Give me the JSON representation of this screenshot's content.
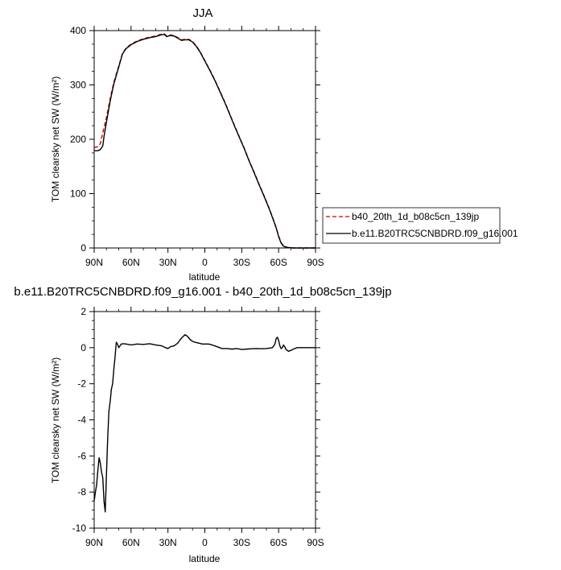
{
  "chart_data": [
    {
      "type": "line",
      "title": "JJA",
      "xlabel": "latitude",
      "ylabel": "TOM clearsky net SW (W/m²)",
      "xlim": [
        90,
        -90
      ],
      "ylim": [
        0,
        400
      ],
      "x_ticks": [
        {
          "value": 90,
          "label": "90N"
        },
        {
          "value": 60,
          "label": "60N"
        },
        {
          "value": 30,
          "label": "30N"
        },
        {
          "value": 0,
          "label": "0"
        },
        {
          "value": -30,
          "label": "30S"
        },
        {
          "value": -60,
          "label": "60S"
        },
        {
          "value": -90,
          "label": "90S"
        }
      ],
      "y_ticks": [
        0,
        100,
        200,
        300,
        400
      ],
      "legend_position": "right",
      "series": [
        {
          "name": "b40_20th_1d_b08c5cn_139jp",
          "color": "#cc0000",
          "dash": "dashed",
          "points": [
            [
              90,
              185
            ],
            [
              87,
              186
            ],
            [
              85,
              192
            ],
            [
              83,
              212
            ],
            [
              80,
              240
            ],
            [
              77,
              275
            ],
            [
              74,
              305
            ],
            [
              70,
              335
            ],
            [
              67,
              358
            ],
            [
              64,
              368
            ],
            [
              60,
              375
            ],
            [
              55,
              381
            ],
            [
              50,
              385
            ],
            [
              45,
              388
            ],
            [
              40,
              390
            ],
            [
              36,
              393
            ],
            [
              33,
              394
            ],
            [
              31,
              390
            ],
            [
              28,
              392
            ],
            [
              25,
              391
            ],
            [
              22,
              387
            ],
            [
              19,
              383
            ],
            [
              16,
              384
            ],
            [
              13,
              384
            ],
            [
              10,
              380
            ],
            [
              7,
              372
            ],
            [
              4,
              362
            ],
            [
              0,
              345
            ],
            [
              -4,
              328
            ],
            [
              -8,
              310
            ],
            [
              -12,
              290
            ],
            [
              -16,
              270
            ],
            [
              -20,
              248
            ],
            [
              -24,
              226
            ],
            [
              -28,
              205
            ],
            [
              -32,
              184
            ],
            [
              -36,
              161
            ],
            [
              -40,
              140
            ],
            [
              -44,
              118
            ],
            [
              -48,
              97
            ],
            [
              -52,
              75
            ],
            [
              -55,
              57
            ],
            [
              -58,
              38
            ],
            [
              -60,
              22
            ],
            [
              -62,
              10
            ],
            [
              -64,
              4
            ],
            [
              -67,
              1
            ],
            [
              -72,
              0
            ],
            [
              -90,
              0
            ]
          ]
        },
        {
          "name": "b.e11.B20TRC5CNBDRD.f09_g16.001",
          "color": "#000000",
          "dash": "solid",
          "points": [
            [
              90,
              179
            ],
            [
              87,
              179
            ],
            [
              85,
              181
            ],
            [
              83,
              188
            ],
            [
              82,
              205
            ],
            [
              80,
              232
            ],
            [
              77,
              270
            ],
            [
              74,
              302
            ],
            [
              70,
              333
            ],
            [
              67,
              357
            ],
            [
              64,
              367
            ],
            [
              60,
              374
            ],
            [
              55,
              380
            ],
            [
              50,
              384
            ],
            [
              45,
              387
            ],
            [
              40,
              389
            ],
            [
              36,
              392
            ],
            [
              33,
              393
            ],
            [
              31,
              389
            ],
            [
              28,
              391
            ],
            [
              25,
              390
            ],
            [
              22,
              386
            ],
            [
              19,
              382
            ],
            [
              16,
              383
            ],
            [
              13,
              383
            ],
            [
              10,
              379
            ],
            [
              7,
              371
            ],
            [
              4,
              361
            ],
            [
              0,
              344
            ],
            [
              -4,
              327
            ],
            [
              -8,
              309
            ],
            [
              -12,
              289
            ],
            [
              -16,
              269
            ],
            [
              -20,
              247
            ],
            [
              -24,
              225
            ],
            [
              -28,
              204
            ],
            [
              -32,
              183
            ],
            [
              -36,
              160
            ],
            [
              -40,
              139
            ],
            [
              -44,
              117
            ],
            [
              -48,
              96
            ],
            [
              -52,
              74
            ],
            [
              -55,
              56
            ],
            [
              -58,
              37
            ],
            [
              -60,
              21
            ],
            [
              -62,
              9
            ],
            [
              -64,
              3
            ],
            [
              -67,
              1
            ],
            [
              -72,
              0
            ],
            [
              -90,
              0
            ]
          ]
        }
      ]
    },
    {
      "type": "line",
      "title": "b.e11.B20TRC5CNBDRD.f09_g16.001 - b40_20th_1d_b08c5cn_139jp",
      "xlabel": "latitude",
      "ylabel": "TOM clearsky net SW (W/m²)",
      "xlim": [
        90,
        -90
      ],
      "ylim": [
        -10,
        2
      ],
      "x_ticks": [
        {
          "value": 90,
          "label": "90N"
        },
        {
          "value": 60,
          "label": "60N"
        },
        {
          "value": 30,
          "label": "30N"
        },
        {
          "value": 0,
          "label": "0"
        },
        {
          "value": -30,
          "label": "30S"
        },
        {
          "value": -60,
          "label": "60S"
        },
        {
          "value": -90,
          "label": "90S"
        }
      ],
      "y_ticks": [
        -10,
        -8,
        -6,
        -4,
        -2,
        0,
        2
      ],
      "series": [
        {
          "name": "",
          "color": "#000000",
          "dash": "solid",
          "points": [
            [
              90,
              -8.5
            ],
            [
              89,
              -8.0
            ],
            [
              88,
              -7.6
            ],
            [
              87,
              -6.8
            ],
            [
              86,
              -6.1
            ],
            [
              85,
              -6.4
            ],
            [
              84,
              -6.9
            ],
            [
              83,
              -7.2
            ],
            [
              82,
              -8.5
            ],
            [
              81,
              -9.1
            ],
            [
              80,
              -7.0
            ],
            [
              79,
              -5.0
            ],
            [
              78,
              -3.5
            ],
            [
              77,
              -3.0
            ],
            [
              76,
              -2.3
            ],
            [
              75,
              -2.0
            ],
            [
              74,
              -1.2
            ],
            [
              73,
              -0.5
            ],
            [
              72,
              0.3
            ],
            [
              71,
              0.2
            ],
            [
              70,
              0.0
            ],
            [
              69,
              0.1
            ],
            [
              68,
              0.2
            ],
            [
              66,
              0.22
            ],
            [
              64,
              0.2
            ],
            [
              60,
              0.15
            ],
            [
              55,
              0.2
            ],
            [
              50,
              0.18
            ],
            [
              45,
              0.22
            ],
            [
              40,
              0.15
            ],
            [
              35,
              0.1
            ],
            [
              32,
              0.0
            ],
            [
              30,
              -0.05
            ],
            [
              28,
              0.05
            ],
            [
              25,
              0.1
            ],
            [
              22,
              0.25
            ],
            [
              20,
              0.45
            ],
            [
              18,
              0.6
            ],
            [
              16,
              0.72
            ],
            [
              14,
              0.62
            ],
            [
              12,
              0.45
            ],
            [
              10,
              0.35
            ],
            [
              8,
              0.3
            ],
            [
              5,
              0.25
            ],
            [
              2,
              0.2
            ],
            [
              0,
              0.2
            ],
            [
              -3,
              0.2
            ],
            [
              -6,
              0.15
            ],
            [
              -10,
              0.05
            ],
            [
              -14,
              -0.05
            ],
            [
              -18,
              -0.05
            ],
            [
              -22,
              -0.08
            ],
            [
              -26,
              -0.05
            ],
            [
              -30,
              -0.1
            ],
            [
              -34,
              -0.08
            ],
            [
              -38,
              -0.06
            ],
            [
              -42,
              -0.05
            ],
            [
              -46,
              -0.06
            ],
            [
              -50,
              -0.05
            ],
            [
              -53,
              -0.02
            ],
            [
              -55,
              0.0
            ],
            [
              -57,
              0.2
            ],
            [
              -58,
              0.5
            ],
            [
              -59,
              0.58
            ],
            [
              -60,
              0.4
            ],
            [
              -61,
              0.1
            ],
            [
              -62,
              -0.05
            ],
            [
              -63,
              0.0
            ],
            [
              -64,
              0.15
            ],
            [
              -65,
              0.05
            ],
            [
              -66,
              -0.1
            ],
            [
              -68,
              -0.2
            ],
            [
              -70,
              -0.15
            ],
            [
              -72,
              -0.08
            ],
            [
              -75,
              0.0
            ],
            [
              -80,
              0.0
            ],
            [
              -85,
              0.0
            ],
            [
              -90,
              0.0
            ]
          ]
        }
      ]
    }
  ]
}
